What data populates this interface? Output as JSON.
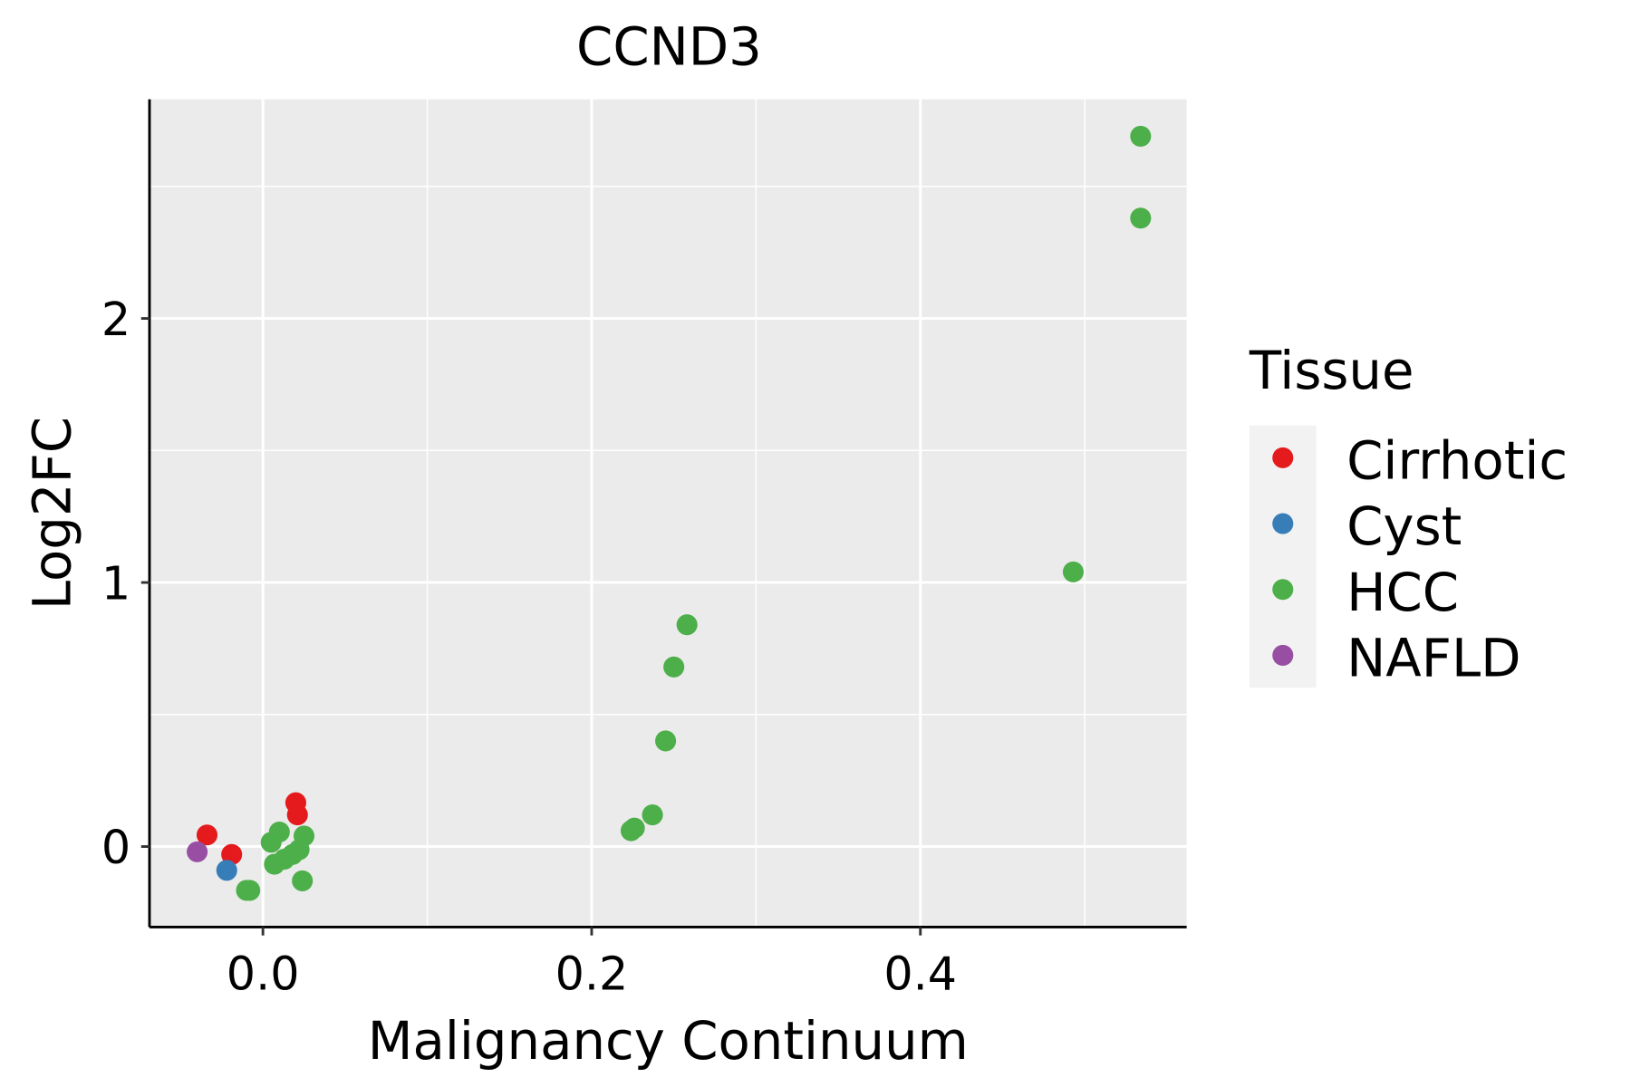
{
  "chart_data": {
    "type": "scatter",
    "title": "CCND3",
    "xlabel": "Malignancy Continuum",
    "ylabel": "Log2FC",
    "xlim": [
      -0.069,
      0.562
    ],
    "ylim": [
      -0.305,
      2.83
    ],
    "xticks": [
      0.0,
      0.2,
      0.4
    ],
    "xtick_labels": [
      "0.0",
      "0.2",
      "0.4"
    ],
    "yticks": [
      0,
      1,
      2
    ],
    "ytick_labels": [
      "0",
      "1",
      "2"
    ],
    "x_minor": [
      0.1,
      0.3,
      0.5
    ],
    "y_minor": [
      0.5,
      1.5,
      2.5
    ],
    "grid": true,
    "legend": {
      "title": "Tissue",
      "placement": "right",
      "entries": [
        "Cirrhotic",
        "Cyst",
        "HCC",
        "NAFLD"
      ]
    },
    "colors": {
      "Cirrhotic": "#E41A1C",
      "Cyst": "#377EB8",
      "HCC": "#4DAF4A",
      "NAFLD": "#984EA3"
    },
    "series": [
      {
        "name": "Cirrhotic",
        "points": [
          [
            -0.034,
            0.044
          ],
          [
            -0.019,
            -0.03
          ],
          [
            0.02,
            0.166
          ],
          [
            0.021,
            0.12
          ]
        ]
      },
      {
        "name": "Cyst",
        "points": [
          [
            -0.022,
            -0.09
          ]
        ]
      },
      {
        "name": "HCC",
        "points": [
          [
            -0.01,
            -0.166
          ],
          [
            -0.008,
            -0.166
          ],
          [
            0.005,
            0.016
          ],
          [
            0.01,
            0.055
          ],
          [
            0.007,
            -0.067
          ],
          [
            0.013,
            -0.048
          ],
          [
            0.018,
            -0.03
          ],
          [
            0.022,
            -0.012
          ],
          [
            0.025,
            0.04
          ],
          [
            0.024,
            -0.13
          ],
          [
            0.224,
            0.06
          ],
          [
            0.226,
            0.07
          ],
          [
            0.237,
            0.12
          ],
          [
            0.245,
            0.4
          ],
          [
            0.25,
            0.68
          ],
          [
            0.258,
            0.84
          ],
          [
            0.493,
            1.04
          ],
          [
            0.534,
            2.69
          ],
          [
            0.534,
            2.38
          ]
        ]
      },
      {
        "name": "NAFLD",
        "points": [
          [
            -0.04,
            -0.02
          ]
        ]
      }
    ]
  }
}
